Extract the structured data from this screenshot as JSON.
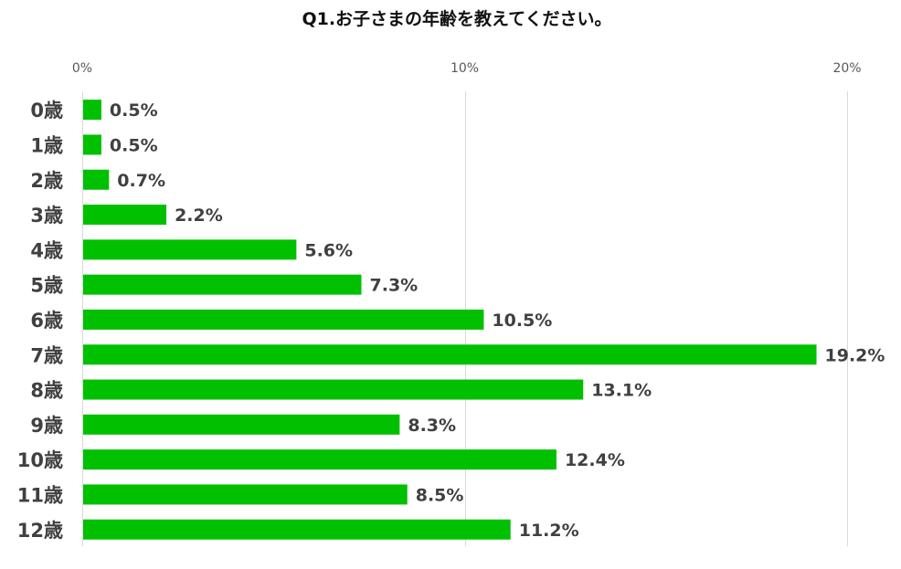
{
  "chart_data": {
    "type": "bar",
    "orientation": "horizontal",
    "title": "Q1.お子さまの年齢を教えてください。",
    "categories": [
      "0歳",
      "1歳",
      "2歳",
      "3歳",
      "4歳",
      "5歳",
      "6歳",
      "7歳",
      "8歳",
      "9歳",
      "10歳",
      "11歳",
      "12歳"
    ],
    "values": [
      0.5,
      0.5,
      0.7,
      2.2,
      5.6,
      7.3,
      10.5,
      19.2,
      13.1,
      8.3,
      12.4,
      8.5,
      11.2
    ],
    "value_labels": [
      "0.5%",
      "0.5%",
      "0.7%",
      "2.2%",
      "5.6%",
      "7.3%",
      "10.5%",
      "19.2%",
      "13.1%",
      "8.3%",
      "12.4%",
      "8.5%",
      "11.2%"
    ],
    "unit": "%",
    "xlim": [
      0,
      20
    ],
    "x_ticks": [
      0,
      10,
      20
    ],
    "x_tick_labels": [
      "0%",
      "10%",
      "20%"
    ],
    "x_axis_position": "top",
    "grid": true,
    "legend": "none",
    "bar_color": "#00c000",
    "gridline_color": "#d9d9d9"
  }
}
